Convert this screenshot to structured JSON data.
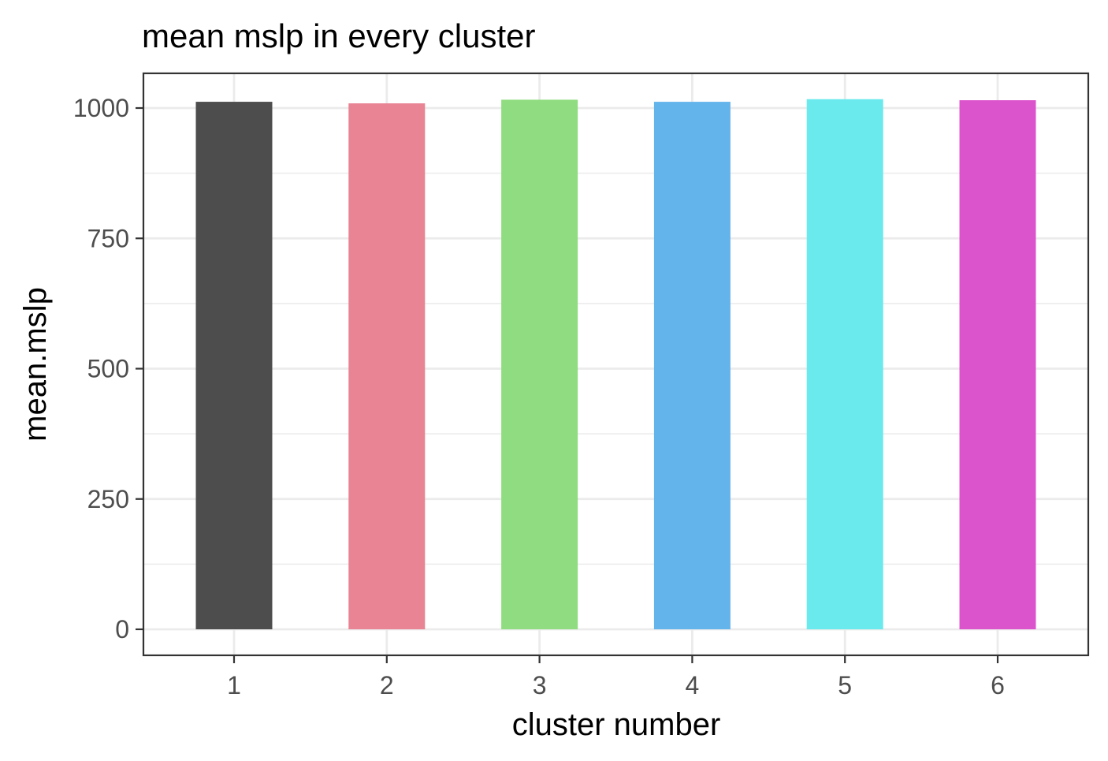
{
  "chart_data": {
    "type": "bar",
    "title": "mean mslp in every cluster",
    "xlabel": "cluster number",
    "ylabel": "mean.mslp",
    "categories": [
      "1",
      "2",
      "3",
      "4",
      "5",
      "6"
    ],
    "values": [
      1012,
      1009,
      1016,
      1012,
      1017,
      1015
    ],
    "colors": [
      "#4d4d4d",
      "#e88494",
      "#90dc80",
      "#64b4ec",
      "#6aeaec",
      "#dc54cc"
    ],
    "yticks": [
      0,
      250,
      500,
      750,
      1000
    ],
    "ytick_labels": [
      "0",
      "250",
      "500",
      "750",
      "1000"
    ],
    "ylim": [
      -50,
      1067
    ],
    "grid": true,
    "legend": "none"
  }
}
